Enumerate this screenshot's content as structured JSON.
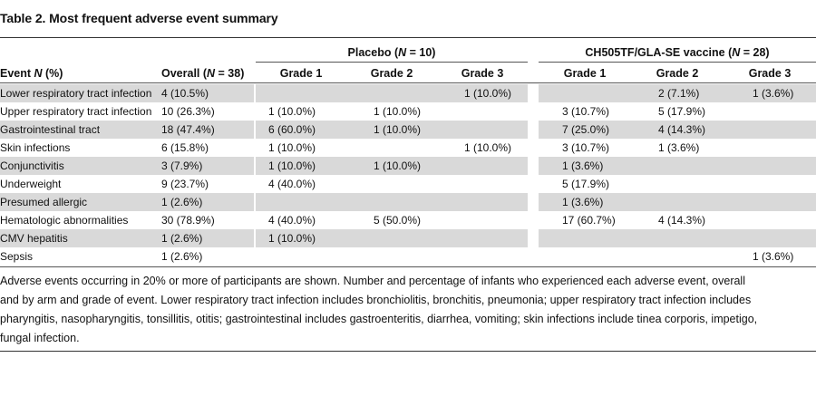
{
  "title": "Table 2. Most frequent adverse event summary",
  "groups": {
    "placebo": {
      "pre": "Placebo (",
      "italic": "N",
      "post": " = 10)"
    },
    "vaccine": {
      "pre": "CH505TF/GLA-SE vaccine (",
      "italic": "N",
      "post": " = 28)"
    }
  },
  "columns": {
    "event": {
      "pre": "Event ",
      "italic": "N",
      "post": " (%)"
    },
    "overall": {
      "pre": "Overall (",
      "italic": "N",
      "post": " = 38)"
    },
    "p_g1": "Grade 1",
    "p_g2": "Grade 2",
    "p_g3": "Grade 3",
    "v_g1": "Grade 1",
    "v_g2": "Grade 2",
    "v_g3": "Grade 3"
  },
  "rows": [
    {
      "event": "Lower respiratory tract infection",
      "overall": "4 (10.5%)",
      "p_g1": "",
      "p_g2": "",
      "p_g3": "1 (10.0%)",
      "v_g1": "",
      "v_g2": "2 (7.1%)",
      "v_g3": "1 (3.6%)"
    },
    {
      "event": "Upper respiratory tract infection",
      "overall": "10 (26.3%)",
      "p_g1": "1 (10.0%)",
      "p_g2": "1 (10.0%)",
      "p_g3": "",
      "v_g1": "3 (10.7%)",
      "v_g2": "5 (17.9%)",
      "v_g3": ""
    },
    {
      "event": "Gastrointestinal tract",
      "overall": "18 (47.4%)",
      "p_g1": "6 (60.0%)",
      "p_g2": "1 (10.0%)",
      "p_g3": "",
      "v_g1": "7 (25.0%)",
      "v_g2": "4 (14.3%)",
      "v_g3": ""
    },
    {
      "event": "Skin infections",
      "overall": "6 (15.8%)",
      "p_g1": "1 (10.0%)",
      "p_g2": "",
      "p_g3": "1 (10.0%)",
      "v_g1": "3 (10.7%)",
      "v_g2": "1 (3.6%)",
      "v_g3": ""
    },
    {
      "event": "Conjunctivitis",
      "overall": "3 (7.9%)",
      "p_g1": "1 (10.0%)",
      "p_g2": "1 (10.0%)",
      "p_g3": "",
      "v_g1": "1 (3.6%)",
      "v_g2": "",
      "v_g3": ""
    },
    {
      "event": "Underweight",
      "overall": "9 (23.7%)",
      "p_g1": "4 (40.0%)",
      "p_g2": "",
      "p_g3": "",
      "v_g1": "5 (17.9%)",
      "v_g2": "",
      "v_g3": ""
    },
    {
      "event": "Presumed allergic",
      "overall": "1 (2.6%)",
      "p_g1": "",
      "p_g2": "",
      "p_g3": "",
      "v_g1": "1 (3.6%)",
      "v_g2": "",
      "v_g3": ""
    },
    {
      "event": "Hematologic abnormalities",
      "overall": "30 (78.9%)",
      "p_g1": "4 (40.0%)",
      "p_g2": "5 (50.0%)",
      "p_g3": "",
      "v_g1": "17 (60.7%)",
      "v_g2": "4 (14.3%)",
      "v_g3": ""
    },
    {
      "event": "CMV hepatitis",
      "overall": "1 (2.6%)",
      "p_g1": "1 (10.0%)",
      "p_g2": "",
      "p_g3": "",
      "v_g1": "",
      "v_g2": "",
      "v_g3": ""
    },
    {
      "event": "Sepsis",
      "overall": "1 (2.6%)",
      "p_g1": "",
      "p_g2": "",
      "p_g3": "",
      "v_g1": "",
      "v_g2": "",
      "v_g3": "1 (3.6%)"
    }
  ],
  "footnote_lines": [
    "Adverse events occurring in 20% or more of participants are shown. Number and percentage of infants who experienced each adverse event, overall",
    "and by arm and grade of event. Lower respiratory tract infection includes bronchiolitis, bronchitis, pneumonia; upper respiratory tract infection includes",
    "pharyngitis, nasopharyngitis, tonsillitis, otitis; gastrointestinal includes gastroenteritis, diarrhea, vomiting; skin infections include tinea corporis, impetigo,",
    "fungal infection."
  ]
}
